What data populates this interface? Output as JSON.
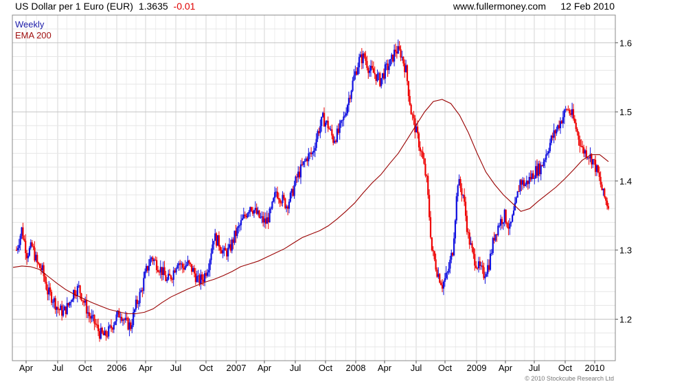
{
  "header": {
    "instrument": "US Dollar per 1 Euro (EUR)",
    "price": "1.3635",
    "change": "-0.01",
    "site": "www.fullermoney.com",
    "date": "12 Feb 2010"
  },
  "legend": {
    "series": "Weekly",
    "indicator": "EMA 200"
  },
  "copyright": "© 2010 Stockcube Research Ltd",
  "colors": {
    "up": "#1010e0",
    "down": "#ee0000",
    "ema": "#990000",
    "grid": "#d0d0d0"
  },
  "chart_data": {
    "type": "candlestick",
    "frequency": "weekly",
    "x_ticks": [
      "Apr",
      "Jul",
      "Oct",
      "2006",
      "Apr",
      "Jul",
      "Oct",
      "2007",
      "Apr",
      "Jul",
      "Oct",
      "2008",
      "Apr",
      "Jul",
      "Oct",
      "2009",
      "Apr",
      "Jul",
      "Oct",
      "2010"
    ],
    "y_ticks": [
      "1.2",
      "1.3",
      "1.4",
      "1.5",
      "1.6"
    ],
    "ylim": [
      1.14,
      1.64
    ],
    "grid": true,
    "close": [
      1.3,
      1.33,
      1.295,
      1.305,
      1.28,
      1.27,
      1.24,
      1.23,
      1.215,
      1.21,
      1.22,
      1.24,
      1.245,
      1.225,
      1.205,
      1.195,
      1.18,
      1.175,
      1.185,
      1.2,
      1.21,
      1.195,
      1.19,
      1.22,
      1.24,
      1.27,
      1.29,
      1.28,
      1.27,
      1.255,
      1.265,
      1.285,
      1.275,
      1.28,
      1.27,
      1.255,
      1.26,
      1.28,
      1.32,
      1.31,
      1.295,
      1.3,
      1.32,
      1.335,
      1.35,
      1.365,
      1.355,
      1.345,
      1.34,
      1.355,
      1.385,
      1.375,
      1.365,
      1.38,
      1.405,
      1.42,
      1.435,
      1.44,
      1.47,
      1.49,
      1.48,
      1.46,
      1.47,
      1.49,
      1.52,
      1.55,
      1.575,
      1.58,
      1.56,
      1.555,
      1.545,
      1.56,
      1.57,
      1.59,
      1.585,
      1.56,
      1.5,
      1.47,
      1.44,
      1.4,
      1.3,
      1.27,
      1.25,
      1.265,
      1.3,
      1.4,
      1.38,
      1.32,
      1.29,
      1.275,
      1.265,
      1.28,
      1.32,
      1.34,
      1.35,
      1.33,
      1.36,
      1.4,
      1.395,
      1.405,
      1.415,
      1.42,
      1.44,
      1.46,
      1.475,
      1.49,
      1.505,
      1.495,
      1.47,
      1.445,
      1.44,
      1.43,
      1.41,
      1.38,
      1.3635
    ],
    "ema_200": [
      1.275,
      1.277,
      1.276,
      1.272,
      1.262,
      1.252,
      1.243,
      1.236,
      1.23,
      1.224,
      1.219,
      1.214,
      1.211,
      1.208,
      1.208,
      1.21,
      1.215,
      1.224,
      1.232,
      1.238,
      1.244,
      1.249,
      1.254,
      1.258,
      1.263,
      1.269,
      1.276,
      1.28,
      1.284,
      1.29,
      1.296,
      1.302,
      1.31,
      1.318,
      1.323,
      1.328,
      1.335,
      1.345,
      1.356,
      1.368,
      1.383,
      1.397,
      1.409,
      1.425,
      1.44,
      1.46,
      1.48,
      1.5,
      1.515,
      1.518,
      1.512,
      1.495,
      1.47,
      1.44,
      1.413,
      1.395,
      1.38,
      1.368,
      1.356,
      1.36,
      1.371,
      1.381,
      1.391,
      1.403,
      1.416,
      1.43,
      1.438,
      1.438,
      1.428
    ]
  }
}
